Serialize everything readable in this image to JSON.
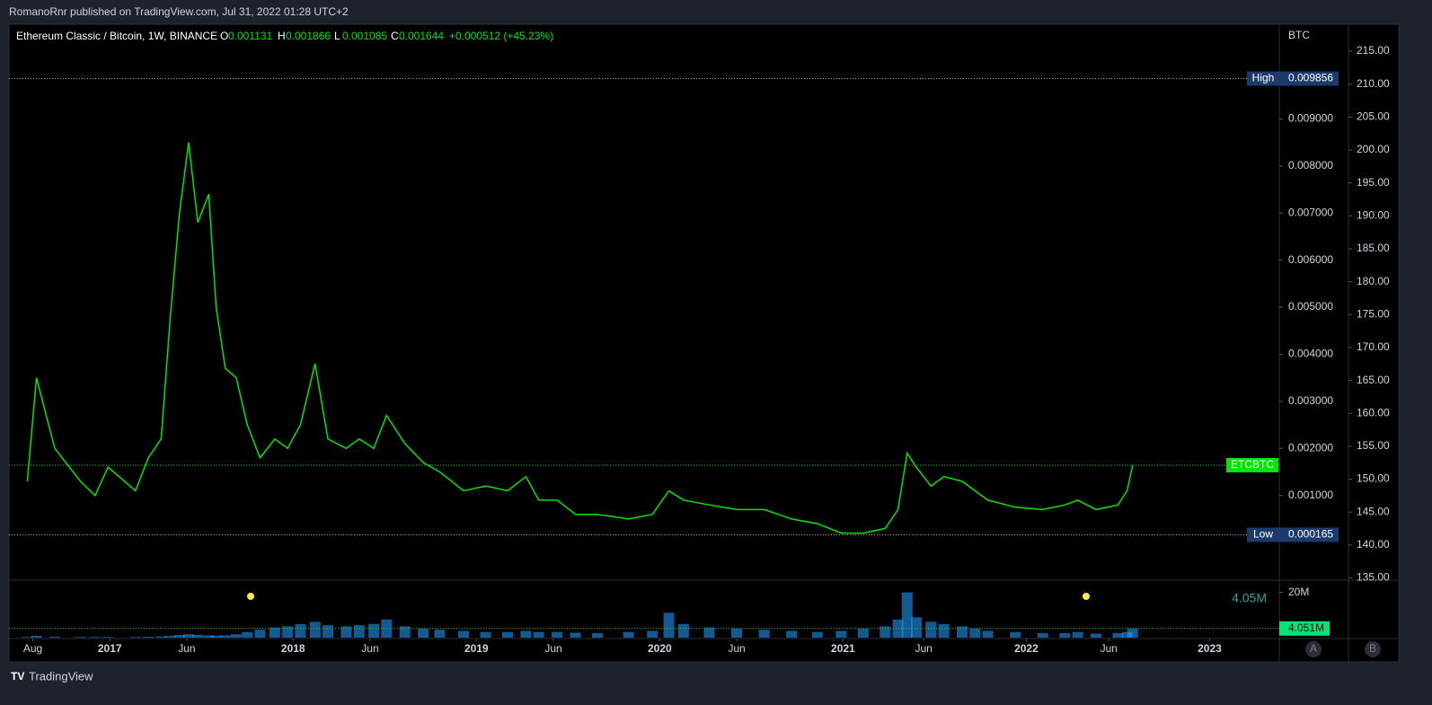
{
  "header": {
    "text": "RomanoRnr published on TradingView.com, Jul 31, 2022 01:28 UTC+2"
  },
  "chart_data": {
    "type": "line",
    "title": "Ethereum Classic / Bitcoin, 1W, BINANCE",
    "ohlc": [
      {
        "label": "O",
        "value": 0.001131
      },
      {
        "label": "H",
        "value": 0.001866
      },
      {
        "label": "L",
        "value": 0.001085
      },
      {
        "label": "C",
        "value": 0.001644
      }
    ],
    "change": "+0.000512 (+45.23%)",
    "unit": "BTC",
    "x": [
      2016.55,
      2016.6,
      2016.7,
      2016.84,
      2016.92,
      2016.99,
      2017.14,
      2017.21,
      2017.28,
      2017.33,
      2017.38,
      2017.43,
      2017.48,
      2017.54,
      2017.58,
      2017.63,
      2017.69,
      2017.75,
      2017.82,
      2017.9,
      2017.97,
      2018.04,
      2018.12,
      2018.19,
      2018.29,
      2018.36,
      2018.44,
      2018.51,
      2018.61,
      2018.71,
      2018.8,
      2018.93,
      2019.05,
      2019.17,
      2019.27,
      2019.34,
      2019.44,
      2019.54,
      2019.66,
      2019.83,
      2019.96,
      2020.05,
      2020.13,
      2020.27,
      2020.42,
      2020.57,
      2020.72,
      2020.86,
      2020.99,
      2021.11,
      2021.23,
      2021.3,
      2021.35,
      2021.4,
      2021.48,
      2021.55,
      2021.65,
      2021.72,
      2021.79,
      2021.94,
      2022.09,
      2022.21,
      2022.28,
      2022.38,
      2022.5,
      2022.55,
      2022.58
    ],
    "series": [
      {
        "name": "ETCBTC",
        "color": "#00e600",
        "values": [
          0.0013,
          0.0035,
          0.002,
          0.0013,
          0.001,
          0.0016,
          0.0011,
          0.0018,
          0.0022,
          0.0048,
          0.007,
          0.0085,
          0.0068,
          0.0074,
          0.005,
          0.0037,
          0.0035,
          0.0025,
          0.0018,
          0.0022,
          0.002,
          0.0025,
          0.0038,
          0.0022,
          0.002,
          0.0022,
          0.002,
          0.0027,
          0.0021,
          0.0017,
          0.0015,
          0.0011,
          0.0012,
          0.0011,
          0.0014,
          0.0009,
          0.0009,
          0.0006,
          0.0006,
          0.0005,
          0.0006,
          0.0011,
          0.0009,
          0.0008,
          0.0007,
          0.0007,
          0.0005,
          0.0004,
          0.0002,
          0.0002,
          0.0003,
          0.0007,
          0.0019,
          0.0016,
          0.0012,
          0.0014,
          0.0013,
          0.0011,
          0.0009,
          0.00075,
          0.0007,
          0.0008,
          0.0009,
          0.0007,
          0.0008,
          0.0011,
          0.001644
        ]
      }
    ],
    "xlim": [
      2016.45,
      2023.38
    ],
    "xticks": [
      {
        "value": 2016.58,
        "label": "Aug"
      },
      2017,
      {
        "value": 2017.42,
        "label": "Jun"
      },
      2018,
      {
        "value": 2018.42,
        "label": "Jun"
      },
      2019,
      {
        "value": 2019.42,
        "label": "Jun"
      },
      2020,
      {
        "value": 2020.42,
        "label": "Jun"
      },
      2021,
      {
        "value": 2021.44,
        "label": "Jun"
      },
      2022,
      {
        "value": 2022.45,
        "label": "Jun"
      },
      2023
    ],
    "ylim": [
      -0.00078,
      0.01101
    ],
    "yticks": [
      {
        "value": 0.001,
        "label": "0.001000"
      },
      {
        "value": 0.002,
        "label": "0.002000"
      },
      {
        "value": 0.003,
        "label": "0.003000"
      },
      {
        "value": 0.004,
        "label": "0.004000"
      },
      {
        "value": 0.005,
        "label": "0.005000"
      },
      {
        "value": 0.006,
        "label": "0.006000"
      },
      {
        "value": 0.007,
        "label": "0.007000"
      },
      {
        "value": 0.008,
        "label": "0.008000"
      },
      {
        "value": 0.009,
        "label": "0.009000"
      }
    ],
    "y2lim": [
      134.8,
      219.1
    ],
    "y2ticks": [
      {
        "value": 135,
        "label": "135.00"
      },
      {
        "value": 140,
        "label": "140.00"
      },
      {
        "value": 145,
        "label": "145.00"
      },
      {
        "value": 150,
        "label": "150.00"
      },
      {
        "value": 155,
        "label": "155.00"
      },
      {
        "value": 160,
        "label": "160.00"
      },
      {
        "value": 165,
        "label": "165.00"
      },
      {
        "value": 170,
        "label": "170.00"
      },
      {
        "value": 175,
        "label": "175.00"
      },
      {
        "value": 180,
        "label": "180.00"
      },
      {
        "value": 185,
        "label": "185.00"
      },
      {
        "value": 190,
        "label": "190.00"
      },
      {
        "value": 195,
        "label": "195.00"
      },
      {
        "value": 200,
        "label": "200.00"
      },
      {
        "value": 205,
        "label": "205.00"
      },
      {
        "value": 210,
        "label": "210.00"
      },
      {
        "value": 215,
        "label": "215.00"
      }
    ],
    "high": {
      "label": "High",
      "value": 0.009856
    },
    "low": {
      "label": "Low",
      "value": 0.000165
    },
    "volume": {
      "color": "#2196f3",
      "values": [
        0.3,
        0.8,
        0.4,
        0.3,
        0.3,
        0.3,
        0.3,
        0.4,
        0.5,
        0.8,
        1.2,
        1.5,
        1.2,
        1.0,
        0.9,
        1.0,
        1.5,
        2.5,
        3.5,
        4.5,
        5.0,
        6.0,
        7.0,
        5.5,
        5.0,
        5.5,
        6.0,
        8.0,
        5.0,
        4.0,
        3.5,
        3.0,
        2.5,
        2.5,
        3.0,
        2.5,
        2.5,
        2.2,
        2.0,
        2.5,
        3.0,
        11.0,
        6.0,
        4.5,
        4.0,
        3.5,
        3.0,
        2.5,
        3.0,
        4.0,
        5.0,
        8.0,
        20.0,
        9.0,
        7.0,
        6.0,
        5.0,
        4.0,
        3.0,
        2.5,
        2.0,
        2.0,
        2.5,
        1.8,
        2.0,
        2.5,
        4.051
      ],
      "ylim": [
        0,
        25
      ],
      "yticks": [
        {
          "value": 20,
          "label": "20M"
        }
      ],
      "annotation": "4.05M",
      "last_label": "4.051M"
    },
    "scale_buttons": [
      "A",
      "B"
    ]
  },
  "footer": {
    "brand": "TradingView"
  }
}
